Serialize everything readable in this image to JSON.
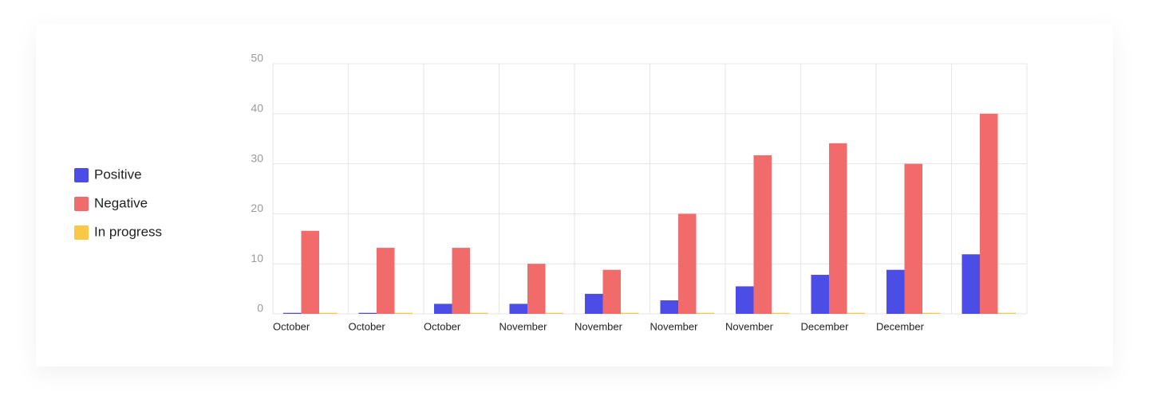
{
  "chart_data": {
    "type": "bar",
    "categories": [
      "October",
      "October",
      "October",
      "November",
      "November",
      "November",
      "November",
      "December",
      "December",
      null
    ],
    "series": [
      {
        "name": "Positive",
        "color": "#4b4de6",
        "values": [
          0.2,
          0.2,
          2,
          2,
          4,
          2.7,
          5.5,
          7.8,
          8.8,
          11.9
        ]
      },
      {
        "name": "Negative",
        "color": "#f26b6b",
        "values": [
          16.6,
          13.2,
          13.2,
          10,
          8.8,
          20,
          31.7,
          34.1,
          30,
          40
        ]
      },
      {
        "name": "In progress",
        "color": "#f9c846",
        "values": [
          0.2,
          0.2,
          0.2,
          0.2,
          0.2,
          0.2,
          0.2,
          0.2,
          0.2,
          0.2
        ]
      }
    ],
    "ylim": [
      0,
      50
    ],
    "yticks": [
      0,
      10,
      20,
      30,
      40,
      50
    ],
    "grid": true,
    "legend": "left"
  }
}
